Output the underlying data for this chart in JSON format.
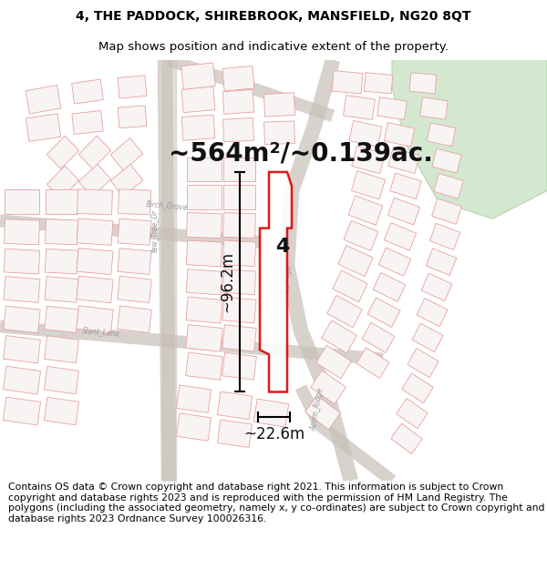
{
  "title_line1": "4, THE PADDOCK, SHIREBROOK, MANSFIELD, NG20 8QT",
  "title_line2": "Map shows position and indicative extent of the property.",
  "area_text": "~564m²/~0.139ac.",
  "label_4": "4",
  "dim_width": "~22.6m",
  "dim_height": "~96.2m",
  "footer_text": "Contains OS data © Crown copyright and database right 2021. This information is subject to Crown copyright and database rights 2023 and is reproduced with the permission of HM Land Registry. The polygons (including the associated geometry, namely x, y co-ordinates) are subject to Crown copyright and database rights 2023 Ordnance Survey 100026316.",
  "bg_color": "#ffffff",
  "map_bg": "#ffffff",
  "building_stroke": "#e8a0a0",
  "road_color": "#c8c0b8",
  "road_lw": 4,
  "red_stroke": "#dd0000",
  "green_fill": "#d4e8d0",
  "green_stroke": "#b8d4b0",
  "text_color": "#888888",
  "title_fontsize": 10,
  "subtitle_fontsize": 9.5,
  "area_fontsize": 20,
  "label_fontsize": 16,
  "dim_fontsize": 12,
  "footer_fontsize": 7.8,
  "road_label_fontsize": 5.5,
  "road_label_color": "#999999"
}
